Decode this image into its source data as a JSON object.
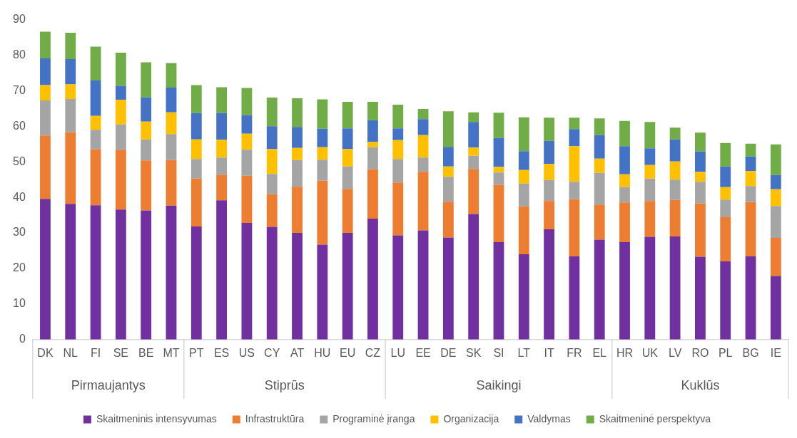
{
  "chart_data": {
    "type": "bar",
    "stacked": true,
    "categories": [
      "DK",
      "NL",
      "FI",
      "SE",
      "BE",
      "MT",
      "PT",
      "ES",
      "US",
      "CY",
      "AT",
      "HU",
      "EU",
      "CZ",
      "LU",
      "EE",
      "DE",
      "SK",
      "SI",
      "LT",
      "IT",
      "FR",
      "EL",
      "HR",
      "UK",
      "LV",
      "RO",
      "PL",
      "BG",
      "IE"
    ],
    "series": [
      {
        "name": "Skaitmeninis intensyvumas",
        "color": "#7030a0",
        "values": [
          39.6,
          38.2,
          37.8,
          36.6,
          36.3,
          37.7,
          31.8,
          39.2,
          32.8,
          31.7,
          30.0,
          26.7,
          30.0,
          34.0,
          29.3,
          30.7,
          28.7,
          35.3,
          27.4,
          24.0,
          31.0,
          23.4,
          28.1,
          27.4,
          28.9,
          29.0,
          23.3,
          22.0,
          23.4,
          17.9
        ]
      },
      {
        "name": "Infrastruktūra",
        "color": "#ed7d31",
        "values": [
          17.8,
          20.1,
          15.7,
          16.8,
          14.1,
          12.8,
          13.5,
          7.2,
          13.3,
          9.2,
          13.0,
          18.0,
          12.4,
          13.9,
          14.9,
          16.5,
          10.1,
          12.7,
          16.1,
          13.5,
          8.0,
          16.1,
          9.9,
          11.2,
          10.1,
          10.3,
          15.0,
          12.4,
          15.3,
          10.7
        ]
      },
      {
        "name": "Programinė įranga",
        "color": "#a5a5a5",
        "values": [
          9.9,
          9.4,
          5.5,
          7.1,
          5.9,
          7.3,
          5.5,
          4.8,
          7.3,
          5.7,
          7.5,
          5.9,
          6.3,
          6.2,
          6.6,
          4.0,
          7.0,
          3.7,
          3.5,
          6.4,
          5.9,
          4.9,
          8.9,
          4.3,
          6.3,
          5.7,
          6.1,
          5.0,
          4.5,
          9.0
        ]
      },
      {
        "name": "Organizacija",
        "color": "#ffc000",
        "values": [
          4.3,
          4.1,
          3.9,
          7.0,
          5.0,
          6.1,
          5.5,
          5.0,
          4.5,
          7.0,
          3.4,
          3.5,
          4.9,
          1.5,
          5.3,
          6.3,
          2.9,
          2.3,
          1.6,
          3.8,
          4.5,
          10.0,
          4.0,
          3.6,
          3.8,
          5.1,
          2.8,
          3.5,
          4.2,
          4.7
        ]
      },
      {
        "name": "Valdymas",
        "color": "#4472c4",
        "values": [
          7.5,
          7.1,
          10.0,
          3.9,
          6.9,
          7.0,
          7.4,
          7.5,
          5.2,
          6.4,
          5.9,
          5.2,
          5.8,
          6.1,
          3.3,
          4.5,
          5.5,
          7.2,
          8.1,
          5.3,
          6.5,
          4.8,
          6.6,
          7.9,
          4.7,
          6.2,
          5.7,
          5.8,
          4.1,
          4.0
        ]
      },
      {
        "name": "Skaitmeninė perspektyva",
        "color": "#70ad47",
        "values": [
          7.5,
          7.4,
          9.5,
          9.3,
          9.8,
          6.9,
          7.9,
          7.3,
          7.7,
          8.1,
          8.1,
          8.3,
          7.5,
          5.2,
          6.7,
          2.9,
          10.0,
          2.7,
          7.1,
          9.5,
          6.5,
          3.2,
          4.7,
          7.1,
          7.4,
          3.3,
          5.3,
          6.6,
          3.6,
          8.6
        ]
      }
    ],
    "ylim": [
      0,
      90
    ],
    "yticks": [
      0,
      10,
      20,
      30,
      40,
      50,
      60,
      70,
      80,
      90
    ],
    "grid": false,
    "legend": "bottom",
    "annotations": [
      "Pirmaujantys",
      "Stiprūs",
      "Saikingi",
      "Kuklūs"
    ]
  }
}
